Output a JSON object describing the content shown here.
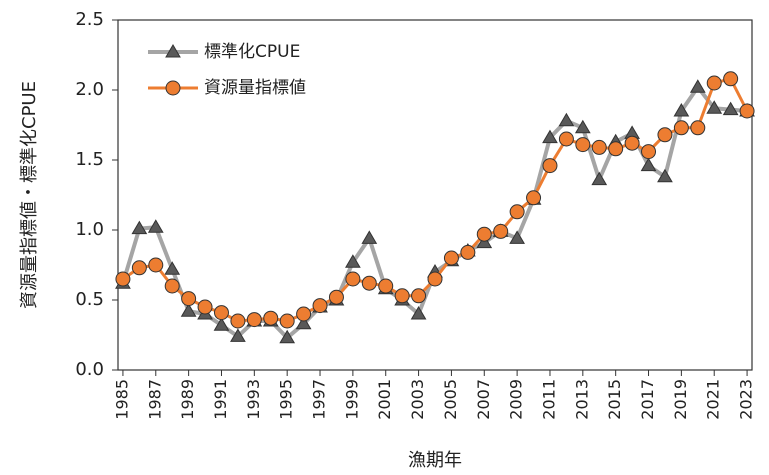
{
  "chart_data": {
    "type": "line",
    "x_label": "漁期年",
    "y_label": "資源量指標値・標準化CPUE",
    "x": [
      1985,
      1986,
      1987,
      1988,
      1989,
      1990,
      1991,
      1992,
      1993,
      1994,
      1995,
      1996,
      1997,
      1998,
      1999,
      2000,
      2001,
      2002,
      2003,
      2004,
      2005,
      2006,
      2007,
      2008,
      2009,
      2010,
      2011,
      2012,
      2013,
      2014,
      2015,
      2016,
      2017,
      2018,
      2019,
      2020,
      2021,
      2022,
      2023
    ],
    "series": [
      {
        "name": "標準化CPUE",
        "color": "#a5a5a5",
        "marker": "triangle",
        "marker_color": "#595959",
        "values": [
          0.62,
          1.01,
          1.02,
          0.72,
          0.42,
          0.4,
          0.32,
          0.24,
          0.35,
          0.35,
          0.23,
          0.33,
          0.45,
          0.5,
          0.77,
          0.94,
          0.58,
          0.5,
          0.4,
          0.7,
          0.78,
          0.85,
          0.91,
          0.99,
          0.94,
          1.22,
          1.66,
          1.78,
          1.73,
          1.36,
          1.63,
          1.69,
          1.46,
          1.38,
          1.85,
          2.02,
          1.87,
          1.86,
          1.85
        ]
      },
      {
        "name": "資源量指標値",
        "color": "#ed7d31",
        "marker": "circle",
        "marker_color": "#ed7d31",
        "values": [
          0.65,
          0.73,
          0.75,
          0.6,
          0.51,
          0.45,
          0.41,
          0.35,
          0.36,
          0.37,
          0.35,
          0.4,
          0.46,
          0.52,
          0.65,
          0.62,
          0.6,
          0.53,
          0.53,
          0.65,
          0.8,
          0.84,
          0.97,
          0.99,
          1.13,
          1.23,
          1.46,
          1.65,
          1.61,
          1.59,
          1.58,
          1.62,
          1.56,
          1.68,
          1.73,
          1.73,
          2.05,
          2.08,
          1.85
        ]
      }
    ],
    "xlim": [
      1984.7,
      2023.3
    ],
    "xticks": [
      1985,
      1987,
      1989,
      1991,
      1993,
      1995,
      1997,
      1999,
      2001,
      2003,
      2005,
      2007,
      2009,
      2011,
      2013,
      2015,
      2017,
      2019,
      2021,
      2023
    ],
    "ylim": [
      0,
      2.5
    ],
    "yticks": [
      {
        "value": 0,
        "label": "0.0"
      },
      0.5,
      {
        "value": 1,
        "label": "1.0"
      },
      1.5,
      {
        "value": 2,
        "label": "2.0"
      },
      2.5
    ],
    "grid": false,
    "legend": "upper-left"
  }
}
